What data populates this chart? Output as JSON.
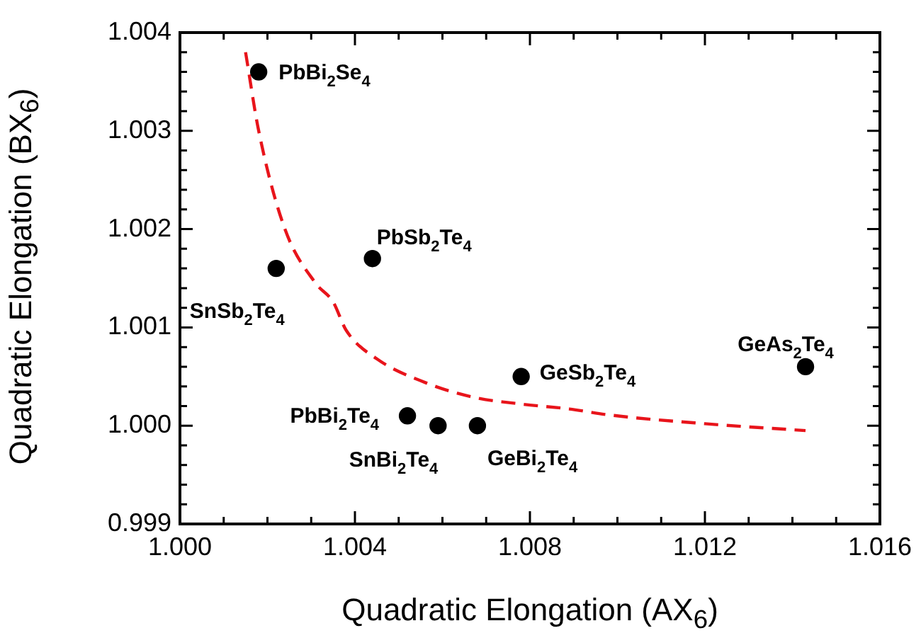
{
  "chart_data": {
    "type": "scatter",
    "xlabel": "Quadratic Elongation (AX$_{6}$)",
    "ylabel": "Quadratic Elongation (BX$_{6}$)",
    "xlim": [
      1.0,
      1.016
    ],
    "xticks": [
      {
        "value": 1.0,
        "label": "1.000"
      },
      {
        "value": 1.001,
        "label": null
      },
      {
        "value": 1.002,
        "label": null
      },
      {
        "value": 1.003,
        "label": null
      },
      {
        "value": 1.004,
        "label": "1.004"
      },
      {
        "value": 1.005,
        "label": null
      },
      {
        "value": 1.006,
        "label": null
      },
      {
        "value": 1.007,
        "label": null
      },
      {
        "value": 1.008,
        "label": "1.008"
      },
      {
        "value": 1.009,
        "label": null
      },
      {
        "value": 1.01,
        "label": null
      },
      {
        "value": 1.011,
        "label": null
      },
      {
        "value": 1.012,
        "label": "1.012"
      },
      {
        "value": 1.013,
        "label": null
      },
      {
        "value": 1.014,
        "label": null
      },
      {
        "value": 1.015,
        "label": null
      },
      {
        "value": 1.016,
        "label": "1.016"
      }
    ],
    "ylim": [
      0.999,
      1.004
    ],
    "yticks": [
      {
        "value": 0.999,
        "label": "0.999"
      },
      {
        "value": 0.9992,
        "label": null
      },
      {
        "value": 0.9994,
        "label": null
      },
      {
        "value": 0.9996,
        "label": null
      },
      {
        "value": 0.9998,
        "label": null
      },
      {
        "value": 1.0,
        "label": "1.000"
      },
      {
        "value": 1.0002,
        "label": null
      },
      {
        "value": 1.0004,
        "label": null
      },
      {
        "value": 1.0006,
        "label": null
      },
      {
        "value": 1.0008,
        "label": null
      },
      {
        "value": 1.001,
        "label": "1.001"
      },
      {
        "value": 1.0012,
        "label": null
      },
      {
        "value": 1.0014,
        "label": null
      },
      {
        "value": 1.0016,
        "label": null
      },
      {
        "value": 1.0018,
        "label": null
      },
      {
        "value": 1.002,
        "label": "1.002"
      },
      {
        "value": 1.0022,
        "label": null
      },
      {
        "value": 1.0024,
        "label": null
      },
      {
        "value": 1.0026,
        "label": null
      },
      {
        "value": 1.0028,
        "label": null
      },
      {
        "value": 1.003,
        "label": "1.003"
      },
      {
        "value": 1.0032,
        "label": null
      },
      {
        "value": 1.0034,
        "label": null
      },
      {
        "value": 1.0036,
        "label": null
      },
      {
        "value": 1.0038,
        "label": null
      },
      {
        "value": 1.004,
        "label": "1.004"
      }
    ],
    "series": [
      {
        "type": "scatter",
        "color": "#000000",
        "marker": "circle",
        "x": [
          1.0018,
          1.0022,
          1.0044,
          1.0052,
          1.0059,
          1.0068,
          1.0078,
          1.0143
        ],
        "values": [
          1.0036,
          1.0016,
          1.0017,
          1.0001,
          1.0,
          1.0,
          1.0005,
          1.0006
        ]
      },
      {
        "type": "line",
        "color": "#e8141b",
        "marker": "none",
        "line_style": "dashed",
        "x": [
          1.0015,
          1.0018,
          1.0024,
          1.0031,
          1.0035,
          1.0038,
          1.0045,
          1.0056,
          1.0067,
          1.0078,
          1.0089,
          1.0098,
          1.012,
          1.0143
        ],
        "values": [
          1.0038,
          1.003,
          1.002,
          1.00145,
          1.00126,
          1.00097,
          1.00068,
          1.00044,
          1.00029,
          1.00022,
          1.00017,
          1.00011,
          1.00002,
          0.99995
        ]
      }
    ],
    "annotations": [
      {
        "text": "PbBi$_{2}$Se$_{4}$",
        "x": 1.0018,
        "y": 1.0036
      },
      {
        "text": "SnSb$_{2}$Te$_{4}$",
        "x": 1.0022,
        "y": 1.0016
      },
      {
        "text": "PbSb$_{2}$Te$_{4}$",
        "x": 1.0044,
        "y": 1.0017
      },
      {
        "text": "PbBi$_{2}$Te$_{4}$",
        "x": 1.0052,
        "y": 1.0001
      },
      {
        "text": "SnBi$_{2}$Te$_{4}$",
        "x": 1.0059,
        "y": 1.0
      },
      {
        "text": "GeBi$_{2}$Te$_{4}$",
        "x": 1.0068,
        "y": 1.0
      },
      {
        "text": "GeSb$_{2}$Te$_{4}$",
        "x": 1.0078,
        "y": 1.0005
      },
      {
        "text": "GeAs$_{2}$Te$_{4}$",
        "x": 1.0143,
        "y": 1.0006
      }
    ],
    "legend": false,
    "grid": false
  }
}
